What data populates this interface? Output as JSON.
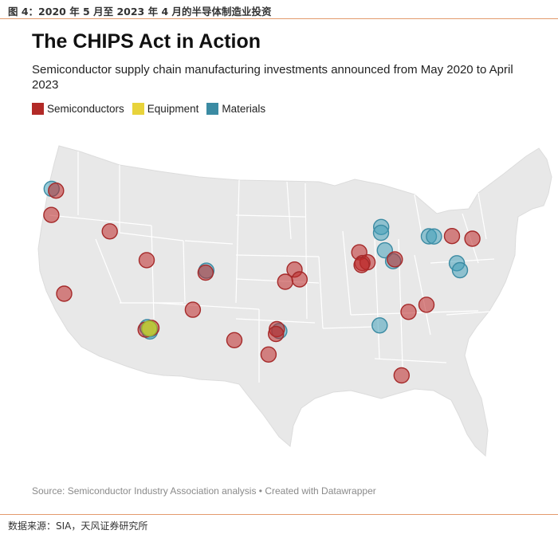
{
  "figure_caption": "图 4：2020 年 5 月至 2023 年 4 月的半导体制造业投资",
  "title": "The CHIPS Act in Action",
  "subtitle": "Semiconductor supply chain manufacturing investments announced from May 2020 to April 2023",
  "legend": [
    {
      "key": "semi",
      "label": "Semiconductors",
      "color": "#b22a27"
    },
    {
      "key": "equip",
      "label": "Equipment",
      "color": "#e8d33b"
    },
    {
      "key": "mat",
      "label": "Materials",
      "color": "#3b8ba3"
    }
  ],
  "colors": {
    "semi_fill": "rgba(190,40,40,0.55)",
    "semi_stroke": "#a52a2a",
    "mat_fill": "rgba(70,160,185,0.55)",
    "mat_stroke": "#3b8ba3",
    "equip_fill": "rgba(190,210,60,0.9)",
    "equip_stroke": "#9ab233",
    "land": "#e8e8e8",
    "border": "#ffffff"
  },
  "source": "Source: Semiconductor Industry Association analysis • Created with Datawrapper",
  "note": "数据来源：SIA，天风证券研究所",
  "chart_data": {
    "type": "symbol-map",
    "region": "Contiguous United States",
    "categories": [
      "Semiconductors",
      "Equipment",
      "Materials"
    ],
    "points": [
      {
        "category": "Materials",
        "lon": -122.7,
        "lat": 48.2
      },
      {
        "category": "Semiconductors",
        "lon": -122.2,
        "lat": 48.0
      },
      {
        "category": "Semiconductors",
        "lon": -122.9,
        "lat": 45.5
      },
      {
        "category": "Semiconductors",
        "lon": -116.2,
        "lat": 43.6
      },
      {
        "category": "Semiconductors",
        "lon": -121.9,
        "lat": 37.3
      },
      {
        "category": "Semiconductors",
        "lon": -112.0,
        "lat": 40.5
      },
      {
        "category": "Materials",
        "lon": -105.0,
        "lat": 39.2
      },
      {
        "category": "Semiconductors",
        "lon": -105.1,
        "lat": 39.0
      },
      {
        "category": "Semiconductors",
        "lon": -106.7,
        "lat": 35.2
      },
      {
        "category": "Materials",
        "lon": -112.2,
        "lat": 33.55
      },
      {
        "category": "Semiconductors",
        "lon": -111.7,
        "lat": 33.45
      },
      {
        "category": "Materials",
        "lon": -111.9,
        "lat": 33.3
      },
      {
        "category": "Semiconductors",
        "lon": -112.4,
        "lat": 33.3
      },
      {
        "category": "Materials",
        "lon": -111.9,
        "lat": 33.1
      },
      {
        "category": "Equipment",
        "lon": -111.95,
        "lat": 33.4
      },
      {
        "category": "Semiconductors",
        "lon": -94.6,
        "lat": 39.1
      },
      {
        "category": "Semiconductors",
        "lon": -95.7,
        "lat": 37.8
      },
      {
        "category": "Semiconductors",
        "lon": -94.0,
        "lat": 38.1
      },
      {
        "category": "Semiconductors",
        "lon": -101.8,
        "lat": 31.9
      },
      {
        "category": "Semiconductors",
        "lon": -96.7,
        "lat": 32.9
      },
      {
        "category": "Materials",
        "lon": -96.4,
        "lat": 32.7
      },
      {
        "category": "Semiconductors",
        "lon": -96.8,
        "lat": 32.4
      },
      {
        "category": "Semiconductors",
        "lon": -97.7,
        "lat": 30.3
      },
      {
        "category": "Semiconductors",
        "lon": -87.0,
        "lat": 41.1
      },
      {
        "category": "Semiconductors",
        "lon": -86.6,
        "lat": 40.0
      },
      {
        "category": "Semiconductors",
        "lon": -86.0,
        "lat": 40.1
      },
      {
        "category": "Semiconductors",
        "lon": -86.7,
        "lat": 39.8
      },
      {
        "category": "Materials",
        "lon": -84.5,
        "lat": 43.8
      },
      {
        "category": "Materials",
        "lon": -84.5,
        "lat": 43.2
      },
      {
        "category": "Materials",
        "lon": -84.0,
        "lat": 41.4
      },
      {
        "category": "Semiconductors",
        "lon": -82.8,
        "lat": 40.5
      },
      {
        "category": "Materials",
        "lon": -83.0,
        "lat": 40.3
      },
      {
        "category": "Materials",
        "lon": -78.9,
        "lat": 43.0
      },
      {
        "category": "Materials",
        "lon": -78.3,
        "lat": 43.0
      },
      {
        "category": "Semiconductors",
        "lon": -76.2,
        "lat": 43.1
      },
      {
        "category": "Semiconductors",
        "lon": -73.8,
        "lat": 42.9
      },
      {
        "category": "Materials",
        "lon": -75.5,
        "lat": 40.3
      },
      {
        "category": "Materials",
        "lon": -75.1,
        "lat": 39.6
      },
      {
        "category": "Semiconductors",
        "lon": -78.9,
        "lat": 35.9
      },
      {
        "category": "Semiconductors",
        "lon": -81.0,
        "lat": 35.1
      },
      {
        "category": "Materials",
        "lon": -84.4,
        "lat": 33.6
      },
      {
        "category": "Semiconductors",
        "lon": -81.6,
        "lat": 28.5
      }
    ]
  }
}
